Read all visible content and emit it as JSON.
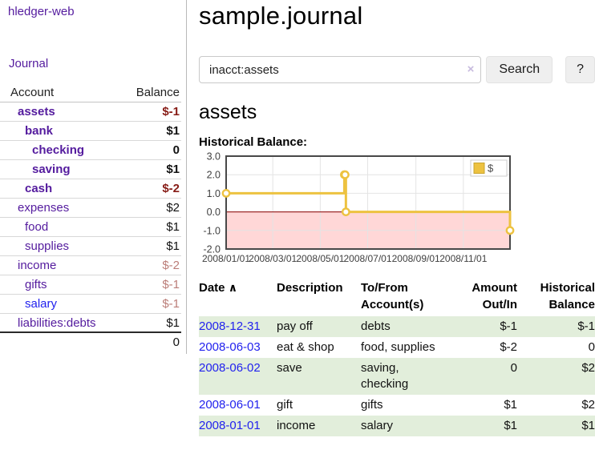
{
  "app": {
    "brand": "hledger-web",
    "nav_journal": "Journal"
  },
  "colors": {
    "link_visited_purple": "#541b9e",
    "link_blue": "#2222ee",
    "negative_red": "#871c16",
    "negative_dim_red": "#bb7d78",
    "row_green": "#e2eedb",
    "chart_line_yellow": "#edc240",
    "chart_negative_region_pink": "#ffd7d7",
    "chart_zero_line_red": "#9e2b2b"
  },
  "sidebar": {
    "headers": [
      "Account",
      "Balance"
    ],
    "rows": [
      {
        "name": "assets",
        "indent": 1,
        "bold": true,
        "balance": "$-1",
        "balance_style": "neg"
      },
      {
        "name": "bank",
        "indent": 2,
        "bold": true,
        "balance": "$1",
        "balance_style": "pos"
      },
      {
        "name": "checking",
        "indent": 3,
        "bold": true,
        "balance": "0",
        "balance_style": "pos"
      },
      {
        "name": "saving",
        "indent": 3,
        "bold": true,
        "balance": "$1",
        "balance_style": "pos"
      },
      {
        "name": "cash",
        "indent": 2,
        "bold": true,
        "balance": "$-2",
        "balance_style": "neg"
      },
      {
        "name": "expenses",
        "indent": 1,
        "bold": false,
        "balance": "$2",
        "balance_style": "pos"
      },
      {
        "name": "food",
        "indent": 2,
        "bold": false,
        "balance": "$1",
        "balance_style": "pos"
      },
      {
        "name": "supplies",
        "indent": 2,
        "bold": false,
        "balance": "$1",
        "balance_style": "pos"
      },
      {
        "name": "income",
        "indent": 1,
        "bold": false,
        "balance": "$-2",
        "balance_style": "negdim"
      },
      {
        "name": "gifts",
        "indent": 2,
        "bold": false,
        "balance": "$-1",
        "balance_style": "negdim"
      },
      {
        "name": "salary",
        "indent": 2,
        "bold": false,
        "balance": "$-1",
        "balance_style": "negdim",
        "link_style": "unvisited"
      },
      {
        "name": "liabilities:debts",
        "indent": 1,
        "bold": false,
        "balance": "$1",
        "balance_style": "pos"
      }
    ],
    "total": "0"
  },
  "header": {
    "title": "sample.journal"
  },
  "search": {
    "value": "inacct:assets",
    "clear_icon": "×",
    "button": "Search",
    "help_button": "?"
  },
  "account_page": {
    "heading": "assets",
    "chart_label": "Historical Balance:"
  },
  "chart_data": {
    "type": "line",
    "step": true,
    "title": "Historical Balance:",
    "series": [
      {
        "name": "$",
        "color": "#edc240",
        "points": [
          [
            "2008/01/01",
            1
          ],
          [
            "2008/06/01",
            2
          ],
          [
            "2008/06/02",
            2
          ],
          [
            "2008/06/03",
            0
          ],
          [
            "2008/12/31",
            -1
          ]
        ]
      }
    ],
    "xlim": [
      "2008/01/01",
      "2008/12/31"
    ],
    "ylim": [
      -2,
      3
    ],
    "x_ticks": [
      "2008/01/01",
      "2008/03/01",
      "2008/05/01",
      "2008/07/01",
      "2008/09/01",
      "2008/11/01"
    ],
    "y_ticks": [
      "3.0",
      "2.0",
      "1.0",
      "0.0",
      "-1.0",
      "-2.0"
    ],
    "grid": true,
    "legend_position": "top-right",
    "negative_region_below": 0
  },
  "register": {
    "sort_icon": "∧",
    "headers": {
      "date": "Date",
      "description": "Description",
      "accounts_l1": "To/From",
      "accounts_l2": "Account(s)",
      "amount_l1": "Amount",
      "amount_l2": "Out/In",
      "balance_l1": "Historical",
      "balance_l2": "Balance"
    },
    "rows": [
      {
        "date": "2008-12-31",
        "description": "pay off",
        "accounts": "debts",
        "amount": "$-1",
        "amount_neg": true,
        "balance": "$-1",
        "balance_neg": true,
        "green": true
      },
      {
        "date": "2008-06-03",
        "description": "eat & shop",
        "accounts": "food, supplies",
        "amount": "$-2",
        "amount_neg": true,
        "balance": "0",
        "balance_neg": false,
        "green": false
      },
      {
        "date": "2008-06-02",
        "description": "save",
        "accounts": "saving, checking",
        "amount": "0",
        "amount_neg": false,
        "balance": "$2",
        "balance_neg": false,
        "green": true
      },
      {
        "date": "2008-06-01",
        "description": "gift",
        "accounts": "gifts",
        "amount": "$1",
        "amount_neg": false,
        "balance": "$2",
        "balance_neg": false,
        "green": false
      },
      {
        "date": "2008-01-01",
        "description": "income",
        "accounts": "salary",
        "amount": "$1",
        "amount_neg": false,
        "balance": "$1",
        "balance_neg": false,
        "green": true
      }
    ]
  }
}
